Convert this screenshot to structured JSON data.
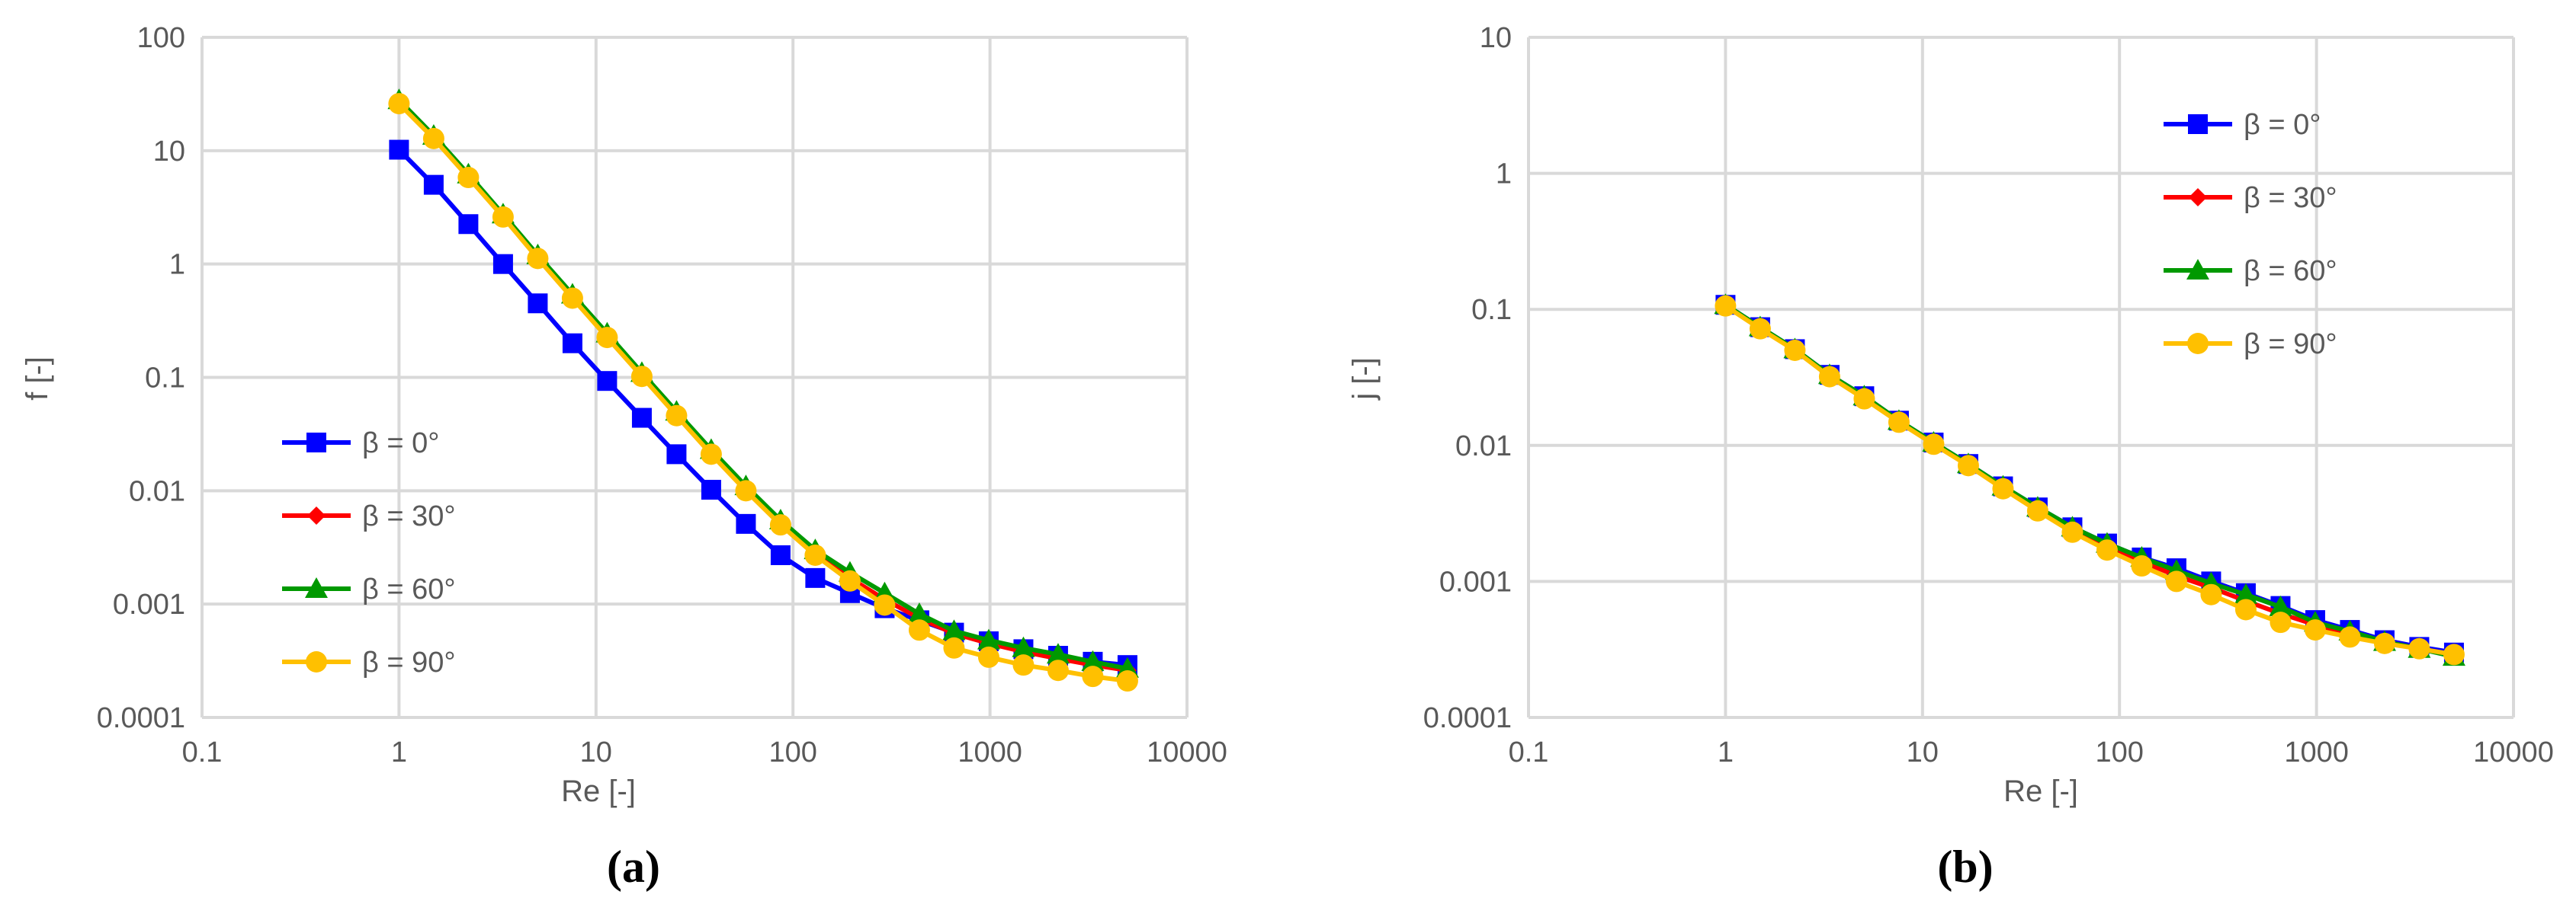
{
  "chart_data": [
    {
      "type": "line",
      "panel_label": "(a)",
      "xlabel": "Re [-]",
      "ylabel": "f [-]",
      "xscale": "log",
      "yscale": "log",
      "xlim": [
        0.1,
        10000
      ],
      "ylim": [
        0.0001,
        100
      ],
      "xticks": [
        "0.1",
        "1",
        "10",
        "100",
        "1000",
        "10000"
      ],
      "yticks": [
        "0.0001",
        "0.001",
        "0.01",
        "0.1",
        "1",
        "10",
        "100"
      ],
      "grid": true,
      "legend_position": "lower-left",
      "x": [
        1,
        1.5,
        2.25,
        3.375,
        5.0625,
        7.594,
        11.39,
        17.09,
        25.63,
        38.44,
        57.67,
        86.5,
        129.7,
        194.6,
        291.9,
        437.9,
        656.8,
        985.3,
        1478,
        2217,
        3325,
        4988
      ],
      "series": [
        {
          "name": "β = 0°",
          "color": "#0000FF",
          "marker": "square",
          "values": [
            10.2,
            5.0,
            2.25,
            1.0,
            0.45,
            0.2,
            0.093,
            0.044,
            0.021,
            0.0102,
            0.0051,
            0.0027,
            0.0017,
            0.00125,
            0.00092,
            0.00072,
            0.00056,
            0.00047,
            0.0004,
            0.00035,
            0.00031,
            0.00029
          ]
        },
        {
          "name": "β = 30°",
          "color": "#FF0000",
          "marker": "diamond",
          "values": [
            27,
            13.2,
            6.0,
            2.65,
            1.16,
            0.52,
            0.235,
            0.106,
            0.048,
            0.022,
            0.0105,
            0.0052,
            0.0028,
            0.0017,
            0.0011,
            0.00075,
            0.00055,
            0.00045,
            0.00038,
            0.00033,
            0.00029,
            0.00026
          ]
        },
        {
          "name": "β = 60°",
          "color": "#009900",
          "marker": "triangle",
          "values": [
            28,
            13.6,
            6.2,
            2.75,
            1.2,
            0.54,
            0.245,
            0.11,
            0.05,
            0.023,
            0.011,
            0.0055,
            0.003,
            0.0019,
            0.00125,
            0.00082,
            0.00058,
            0.00048,
            0.00041,
            0.00036,
            0.00031,
            0.00027
          ]
        },
        {
          "name": "β = 90°",
          "color": "#FFC000",
          "marker": "circle",
          "values": [
            26,
            12.8,
            5.8,
            2.6,
            1.12,
            0.5,
            0.225,
            0.102,
            0.046,
            0.021,
            0.01,
            0.005,
            0.0027,
            0.0016,
            0.00098,
            0.00059,
            0.00041,
            0.00034,
            0.00029,
            0.00026,
            0.00023,
            0.00021
          ]
        }
      ]
    },
    {
      "type": "line",
      "panel_label": "(b)",
      "xlabel": "Re [-]",
      "ylabel": "j [-]",
      "xscale": "log",
      "yscale": "log",
      "xlim": [
        0.1,
        10000
      ],
      "ylim": [
        0.0001,
        10
      ],
      "xticks": [
        "0.1",
        "1",
        "10",
        "100",
        "1000",
        "10000"
      ],
      "yticks": [
        "0.0001",
        "0.001",
        "0.01",
        "0.1",
        "1",
        "10"
      ],
      "grid": true,
      "legend_position": "top-right",
      "x": [
        1,
        1.5,
        2.25,
        3.375,
        5.0625,
        7.594,
        11.39,
        17.09,
        25.63,
        38.44,
        57.67,
        86.5,
        129.7,
        194.6,
        291.9,
        437.9,
        656.8,
        985.3,
        1478,
        2217,
        3325,
        4988
      ],
      "series": [
        {
          "name": "β = 0°",
          "color": "#0000FF",
          "marker": "square",
          "values": [
            0.108,
            0.074,
            0.051,
            0.033,
            0.023,
            0.0152,
            0.0105,
            0.0073,
            0.005,
            0.0035,
            0.0025,
            0.0019,
            0.0015,
            0.00125,
            0.001,
            0.00082,
            0.00066,
            0.00052,
            0.00044,
            0.00037,
            0.00033,
            0.0003
          ]
        },
        {
          "name": "β = 30°",
          "color": "#FF0000",
          "marker": "diamond",
          "values": [
            0.107,
            0.073,
            0.05,
            0.033,
            0.0225,
            0.015,
            0.0104,
            0.0072,
            0.0049,
            0.0034,
            0.0024,
            0.0018,
            0.0014,
            0.0011,
            0.0009,
            0.00072,
            0.00058,
            0.00048,
            0.00041,
            0.00036,
            0.00032,
            0.00029
          ]
        },
        {
          "name": "β = 60°",
          "color": "#009900",
          "marker": "triangle",
          "values": [
            0.108,
            0.074,
            0.051,
            0.033,
            0.023,
            0.0152,
            0.0105,
            0.0073,
            0.005,
            0.0035,
            0.0025,
            0.0019,
            0.0015,
            0.0012,
            0.00097,
            0.0008,
            0.00065,
            0.0005,
            0.00043,
            0.00036,
            0.00032,
            0.00028
          ]
        },
        {
          "name": "β = 90°",
          "color": "#FFC000",
          "marker": "circle",
          "values": [
            0.106,
            0.072,
            0.05,
            0.032,
            0.022,
            0.0148,
            0.0102,
            0.0071,
            0.0048,
            0.0033,
            0.0023,
            0.0017,
            0.0013,
            0.001,
            0.0008,
            0.00062,
            0.0005,
            0.00044,
            0.00039,
            0.00035,
            0.00032,
            0.00029
          ]
        }
      ]
    }
  ]
}
